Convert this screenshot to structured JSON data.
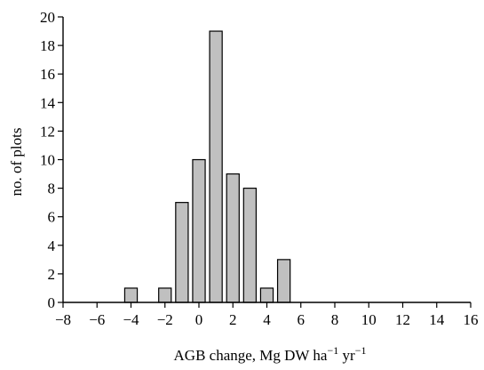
{
  "chart_data": {
    "type": "bar",
    "title": "",
    "xlabel": "AGB change, Mg DW ha",
    "xlabel_sup1": "−1",
    "xlabel_mid": " yr",
    "xlabel_sup2": "−1",
    "ylabel": "no. of plots",
    "xlim": [
      -8,
      16
    ],
    "ylim": [
      0,
      20
    ],
    "xticks": [
      -8,
      -6,
      -4,
      -2,
      0,
      2,
      4,
      6,
      8,
      10,
      12,
      14,
      16
    ],
    "yticks": [
      0,
      2,
      4,
      6,
      8,
      10,
      12,
      14,
      16,
      18,
      20
    ],
    "bin_width": 1,
    "bins": [
      {
        "x": -4,
        "value": 1
      },
      {
        "x": -2,
        "value": 1
      },
      {
        "x": -1,
        "value": 7
      },
      {
        "x": 0,
        "value": 10
      },
      {
        "x": 1,
        "value": 19
      },
      {
        "x": 2,
        "value": 9
      },
      {
        "x": 3,
        "value": 8
      },
      {
        "x": 4,
        "value": 1
      },
      {
        "x": 5,
        "value": 3
      }
    ],
    "grid": false,
    "legend": "none"
  }
}
